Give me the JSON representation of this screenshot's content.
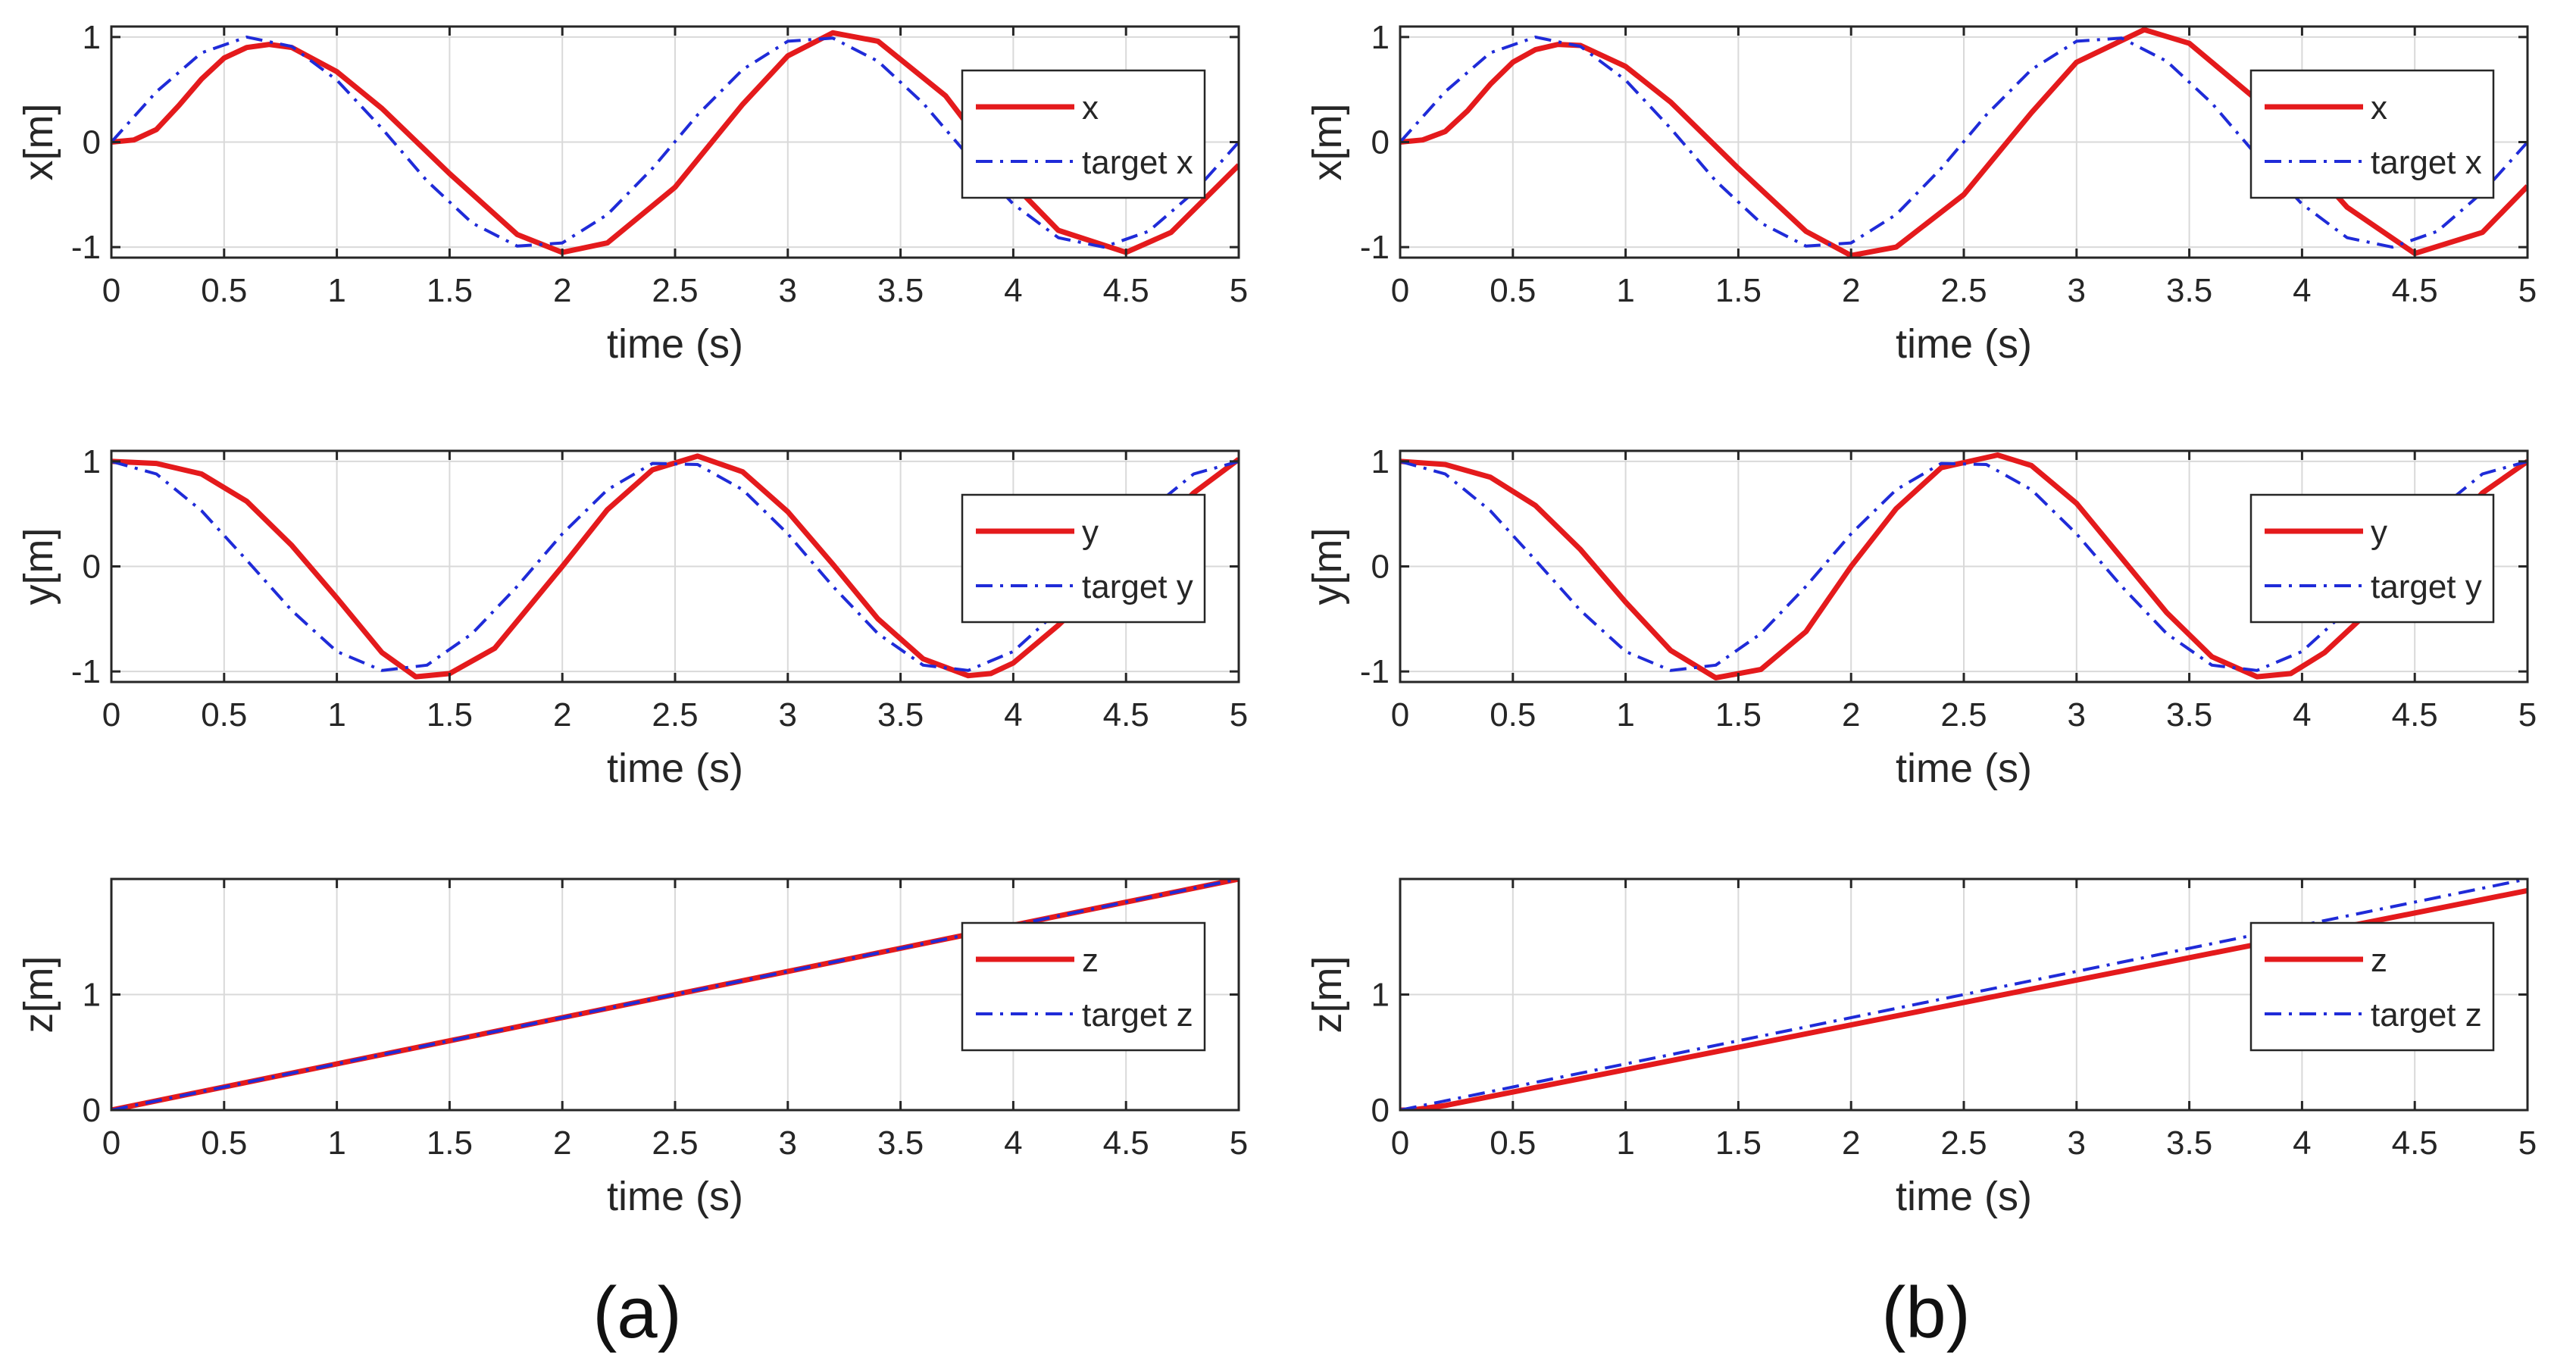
{
  "colors": {
    "actual": "#e41a1c",
    "target": "#1f2bd8",
    "grid": "#d9d9d9",
    "axes": "#262626"
  },
  "panels": [
    {
      "caption": "(a)"
    },
    {
      "caption": "(b)"
    }
  ],
  "chart_data": [
    {
      "panel": "a",
      "type": "line",
      "title": "",
      "xlabel": "time (s)",
      "ylabel": "x[m]",
      "xlim": [
        0,
        5
      ],
      "ylim": [
        -1.1,
        1.1
      ],
      "xticks": [
        0,
        0.5,
        1,
        1.5,
        2,
        2.5,
        3,
        3.5,
        4,
        4.5,
        5
      ],
      "xtick_labels": [
        "0",
        "0.5",
        "1",
        "1.5",
        "2",
        "2.5",
        "3",
        "3.5",
        "4",
        "4.5",
        "5"
      ],
      "yticks": [
        -1,
        0,
        1
      ],
      "ytick_labels": [
        "-1",
        "0",
        "1"
      ],
      "grid": true,
      "legend": "right",
      "series": [
        {
          "name": "x",
          "style": "solid",
          "color": "#e41a1c",
          "x": [
            0,
            0.1,
            0.2,
            0.3,
            0.4,
            0.5,
            0.6,
            0.7,
            0.8,
            1.0,
            1.2,
            1.5,
            1.8,
            2.0,
            2.2,
            2.5,
            2.8,
            3.0,
            3.2,
            3.4,
            3.7,
            4.0,
            4.2,
            4.5,
            4.7,
            5.0
          ],
          "y": [
            0,
            0.02,
            0.12,
            0.35,
            0.6,
            0.8,
            0.9,
            0.93,
            0.9,
            0.67,
            0.32,
            -0.3,
            -0.88,
            -1.05,
            -0.96,
            -0.43,
            0.36,
            0.82,
            1.04,
            0.96,
            0.44,
            -0.4,
            -0.84,
            -1.05,
            -0.86,
            -0.22
          ]
        },
        {
          "name": "target x",
          "style": "dashdot",
          "color": "#1f2bd8",
          "x": [
            0,
            0.2,
            0.4,
            0.6,
            0.8,
            1.0,
            1.2,
            1.4,
            1.6,
            1.8,
            2.0,
            2.2,
            2.4,
            2.6,
            2.8,
            3.0,
            3.2,
            3.4,
            3.6,
            3.8,
            4.0,
            4.2,
            4.4,
            4.6,
            4.8,
            5.0
          ],
          "y": [
            0,
            0.48,
            0.85,
            1.0,
            0.91,
            0.59,
            0.13,
            -0.37,
            -0.77,
            -0.99,
            -0.96,
            -0.69,
            -0.25,
            0.26,
            0.69,
            0.96,
            0.99,
            0.77,
            0.37,
            -0.13,
            -0.59,
            -0.91,
            -1.0,
            -0.85,
            -0.48,
            0.0
          ]
        }
      ]
    },
    {
      "panel": "a",
      "type": "line",
      "title": "",
      "xlabel": "time (s)",
      "ylabel": "y[m]",
      "xlim": [
        0,
        5
      ],
      "ylim": [
        -1.1,
        1.1
      ],
      "xticks": [
        0,
        0.5,
        1,
        1.5,
        2,
        2.5,
        3,
        3.5,
        4,
        4.5,
        5
      ],
      "xtick_labels": [
        "0",
        "0.5",
        "1",
        "1.5",
        "2",
        "2.5",
        "3",
        "3.5",
        "4",
        "4.5",
        "5"
      ],
      "yticks": [
        -1,
        0,
        1
      ],
      "ytick_labels": [
        "-1",
        "0",
        "1"
      ],
      "grid": true,
      "legend": "right",
      "series": [
        {
          "name": "y",
          "style": "solid",
          "color": "#e41a1c",
          "x": [
            0,
            0.2,
            0.4,
            0.6,
            0.8,
            1.0,
            1.2,
            1.35,
            1.5,
            1.7,
            2.0,
            2.2,
            2.4,
            2.6,
            2.8,
            3.0,
            3.2,
            3.4,
            3.6,
            3.8,
            3.9,
            4.0,
            4.2,
            4.5,
            4.8,
            5.0
          ],
          "y": [
            1.0,
            0.98,
            0.88,
            0.62,
            0.2,
            -0.3,
            -0.82,
            -1.05,
            -1.02,
            -0.78,
            0.0,
            0.54,
            0.92,
            1.05,
            0.9,
            0.52,
            0.02,
            -0.5,
            -0.88,
            -1.04,
            -1.02,
            -0.92,
            -0.56,
            0.06,
            0.7,
            1.02
          ]
        },
        {
          "name": "target y",
          "style": "dashdot",
          "color": "#1f2bd8",
          "x": [
            0,
            0.2,
            0.4,
            0.6,
            0.8,
            1.0,
            1.2,
            1.4,
            1.6,
            1.8,
            2.0,
            2.2,
            2.4,
            2.6,
            2.8,
            3.0,
            3.2,
            3.4,
            3.6,
            3.8,
            4.0,
            4.2,
            4.4,
            4.6,
            4.8,
            5.0
          ],
          "y": [
            1.0,
            0.88,
            0.53,
            0.06,
            -0.42,
            -0.81,
            -0.99,
            -0.94,
            -0.64,
            -0.19,
            0.31,
            0.73,
            0.98,
            0.97,
            0.73,
            0.31,
            -0.19,
            -0.64,
            -0.94,
            -0.99,
            -0.81,
            -0.42,
            0.06,
            0.53,
            0.88,
            1.0
          ]
        }
      ]
    },
    {
      "panel": "a",
      "type": "line",
      "title": "",
      "xlabel": "time (s)",
      "ylabel": "z[m]",
      "xlim": [
        0,
        5
      ],
      "ylim": [
        0,
        2.0
      ],
      "xticks": [
        0,
        0.5,
        1,
        1.5,
        2,
        2.5,
        3,
        3.5,
        4,
        4.5,
        5
      ],
      "xtick_labels": [
        "0",
        "0.5",
        "1",
        "1.5",
        "2",
        "2.5",
        "3",
        "3.5",
        "4",
        "4.5",
        "5"
      ],
      "yticks": [
        0,
        1
      ],
      "ytick_labels": [
        "0",
        "1"
      ],
      "grid": true,
      "legend": "right",
      "series": [
        {
          "name": "z",
          "style": "solid",
          "color": "#e41a1c",
          "x": [
            0,
            5
          ],
          "y": [
            0,
            2.0
          ]
        },
        {
          "name": "target z",
          "style": "dashdot",
          "color": "#1f2bd8",
          "x": [
            0,
            5
          ],
          "y": [
            0,
            2.0
          ]
        }
      ]
    },
    {
      "panel": "b",
      "type": "line",
      "title": "",
      "xlabel": "time (s)",
      "ylabel": "x[m]",
      "xlim": [
        0,
        5
      ],
      "ylim": [
        -1.1,
        1.1
      ],
      "xticks": [
        0,
        0.5,
        1,
        1.5,
        2,
        2.5,
        3,
        3.5,
        4,
        4.5,
        5
      ],
      "xtick_labels": [
        "0",
        "0.5",
        "1",
        "1.5",
        "2",
        "2.5",
        "3",
        "3.5",
        "4",
        "4.5",
        "5"
      ],
      "yticks": [
        -1,
        0,
        1
      ],
      "ytick_labels": [
        "-1",
        "0",
        "1"
      ],
      "grid": true,
      "legend": "right",
      "series": [
        {
          "name": "x",
          "style": "solid",
          "color": "#e41a1c",
          "x": [
            0,
            0.1,
            0.2,
            0.3,
            0.4,
            0.5,
            0.6,
            0.7,
            0.8,
            1.0,
            1.2,
            1.5,
            1.8,
            2.0,
            2.2,
            2.5,
            2.8,
            3.0,
            3.3,
            3.5,
            3.8,
            4.0,
            4.2,
            4.5,
            4.8,
            5.0
          ],
          "y": [
            0,
            0.02,
            0.1,
            0.3,
            0.55,
            0.76,
            0.88,
            0.93,
            0.92,
            0.72,
            0.38,
            -0.25,
            -0.85,
            -1.08,
            -1.0,
            -0.5,
            0.28,
            0.76,
            1.07,
            0.94,
            0.4,
            -0.14,
            -0.62,
            -1.06,
            -0.86,
            -0.42
          ]
        },
        {
          "name": "target x",
          "style": "dashdot",
          "color": "#1f2bd8",
          "x": [
            0,
            0.2,
            0.4,
            0.6,
            0.8,
            1.0,
            1.2,
            1.4,
            1.6,
            1.8,
            2.0,
            2.2,
            2.4,
            2.6,
            2.8,
            3.0,
            3.2,
            3.4,
            3.6,
            3.8,
            4.0,
            4.2,
            4.4,
            4.6,
            4.8,
            5.0
          ],
          "y": [
            0,
            0.48,
            0.85,
            1.0,
            0.91,
            0.59,
            0.13,
            -0.37,
            -0.77,
            -0.99,
            -0.96,
            -0.69,
            -0.25,
            0.26,
            0.69,
            0.96,
            0.99,
            0.77,
            0.37,
            -0.13,
            -0.59,
            -0.91,
            -1.0,
            -0.85,
            -0.48,
            0.0
          ]
        }
      ]
    },
    {
      "panel": "b",
      "type": "line",
      "title": "",
      "xlabel": "time (s)",
      "ylabel": "y[m]",
      "xlim": [
        0,
        5
      ],
      "ylim": [
        -1.1,
        1.1
      ],
      "xticks": [
        0,
        0.5,
        1,
        1.5,
        2,
        2.5,
        3,
        3.5,
        4,
        4.5,
        5
      ],
      "xtick_labels": [
        "0",
        "0.5",
        "1",
        "1.5",
        "2",
        "2.5",
        "3",
        "3.5",
        "4",
        "4.5",
        "5"
      ],
      "yticks": [
        -1,
        0,
        1
      ],
      "ytick_labels": [
        "-1",
        "0",
        "1"
      ],
      "grid": true,
      "legend": "right",
      "series": [
        {
          "name": "y",
          "style": "solid",
          "color": "#e41a1c",
          "x": [
            0,
            0.2,
            0.4,
            0.6,
            0.8,
            1.0,
            1.2,
            1.4,
            1.6,
            1.8,
            2.0,
            2.2,
            2.4,
            2.65,
            2.8,
            3.0,
            3.2,
            3.4,
            3.6,
            3.8,
            3.95,
            4.1,
            4.3,
            4.6,
            4.8,
            5.0
          ],
          "y": [
            1.0,
            0.97,
            0.85,
            0.58,
            0.16,
            -0.34,
            -0.8,
            -1.06,
            -0.98,
            -0.62,
            0.0,
            0.55,
            0.94,
            1.06,
            0.96,
            0.6,
            0.08,
            -0.44,
            -0.86,
            -1.05,
            -1.02,
            -0.82,
            -0.42,
            0.24,
            0.7,
            1.0
          ]
        },
        {
          "name": "target y",
          "style": "dashdot",
          "color": "#1f2bd8",
          "x": [
            0,
            0.2,
            0.4,
            0.6,
            0.8,
            1.0,
            1.2,
            1.4,
            1.6,
            1.8,
            2.0,
            2.2,
            2.4,
            2.6,
            2.8,
            3.0,
            3.2,
            3.4,
            3.6,
            3.8,
            4.0,
            4.2,
            4.4,
            4.6,
            4.8,
            5.0
          ],
          "y": [
            1.0,
            0.88,
            0.53,
            0.06,
            -0.42,
            -0.81,
            -0.99,
            -0.94,
            -0.64,
            -0.19,
            0.31,
            0.73,
            0.98,
            0.97,
            0.73,
            0.31,
            -0.19,
            -0.64,
            -0.94,
            -0.99,
            -0.81,
            -0.42,
            0.06,
            0.53,
            0.88,
            1.0
          ]
        }
      ]
    },
    {
      "panel": "b",
      "type": "line",
      "title": "",
      "xlabel": "time (s)",
      "ylabel": "z[m]",
      "xlim": [
        0,
        5
      ],
      "ylim": [
        0,
        2.0
      ],
      "xticks": [
        0,
        0.5,
        1,
        1.5,
        2,
        2.5,
        3,
        3.5,
        4,
        4.5,
        5
      ],
      "xtick_labels": [
        "0",
        "0.5",
        "1",
        "1.5",
        "2",
        "2.5",
        "3",
        "3.5",
        "4",
        "4.5",
        "5"
      ],
      "yticks": [
        0,
        1
      ],
      "ytick_labels": [
        "0",
        "1"
      ],
      "grid": true,
      "legend": "right",
      "series": [
        {
          "name": "z",
          "style": "solid",
          "color": "#e41a1c",
          "x": [
            0,
            0.05,
            0.2,
            5
          ],
          "y": [
            0,
            0.0,
            0.04,
            1.9
          ]
        },
        {
          "name": "target z",
          "style": "dashdot",
          "color": "#1f2bd8",
          "x": [
            0,
            5
          ],
          "y": [
            0,
            2.0
          ]
        }
      ]
    }
  ]
}
